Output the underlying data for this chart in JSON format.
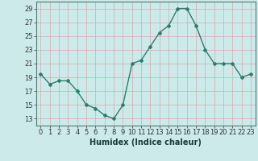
{
  "x": [
    0,
    1,
    2,
    3,
    4,
    5,
    6,
    7,
    8,
    9,
    10,
    11,
    12,
    13,
    14,
    15,
    16,
    17,
    18,
    19,
    20,
    21,
    22,
    23
  ],
  "y": [
    19.5,
    18.0,
    18.5,
    18.5,
    17.0,
    15.0,
    14.5,
    13.5,
    13.0,
    15.0,
    21.0,
    21.5,
    23.5,
    25.5,
    26.5,
    29.0,
    29.0,
    26.5,
    23.0,
    21.0,
    21.0,
    21.0,
    19.0,
    19.5
  ],
  "line_color": "#2e7d6e",
  "marker": "D",
  "marker_size": 2.0,
  "bg_color": "#cceaea",
  "grid_color": "#d4aaaa",
  "xlabel": "Humidex (Indice chaleur)",
  "ylim": [
    12,
    30
  ],
  "xlim": [
    -0.5,
    23.5
  ],
  "yticks": [
    13,
    15,
    17,
    19,
    21,
    23,
    25,
    27,
    29
  ],
  "xticks": [
    0,
    1,
    2,
    3,
    4,
    5,
    6,
    7,
    8,
    9,
    10,
    11,
    12,
    13,
    14,
    15,
    16,
    17,
    18,
    19,
    20,
    21,
    22,
    23
  ],
  "xtick_labels": [
    "0",
    "1",
    "2",
    "3",
    "4",
    "5",
    "6",
    "7",
    "8",
    "9",
    "10",
    "11",
    "12",
    "13",
    "14",
    "15",
    "16",
    "17",
    "18",
    "19",
    "20",
    "21",
    "22",
    "23"
  ],
  "ytick_labels": [
    "13",
    "15",
    "17",
    "19",
    "21",
    "23",
    "25",
    "27",
    "29"
  ],
  "xlabel_fontsize": 7,
  "tick_fontsize": 6,
  "line_width": 1.0
}
